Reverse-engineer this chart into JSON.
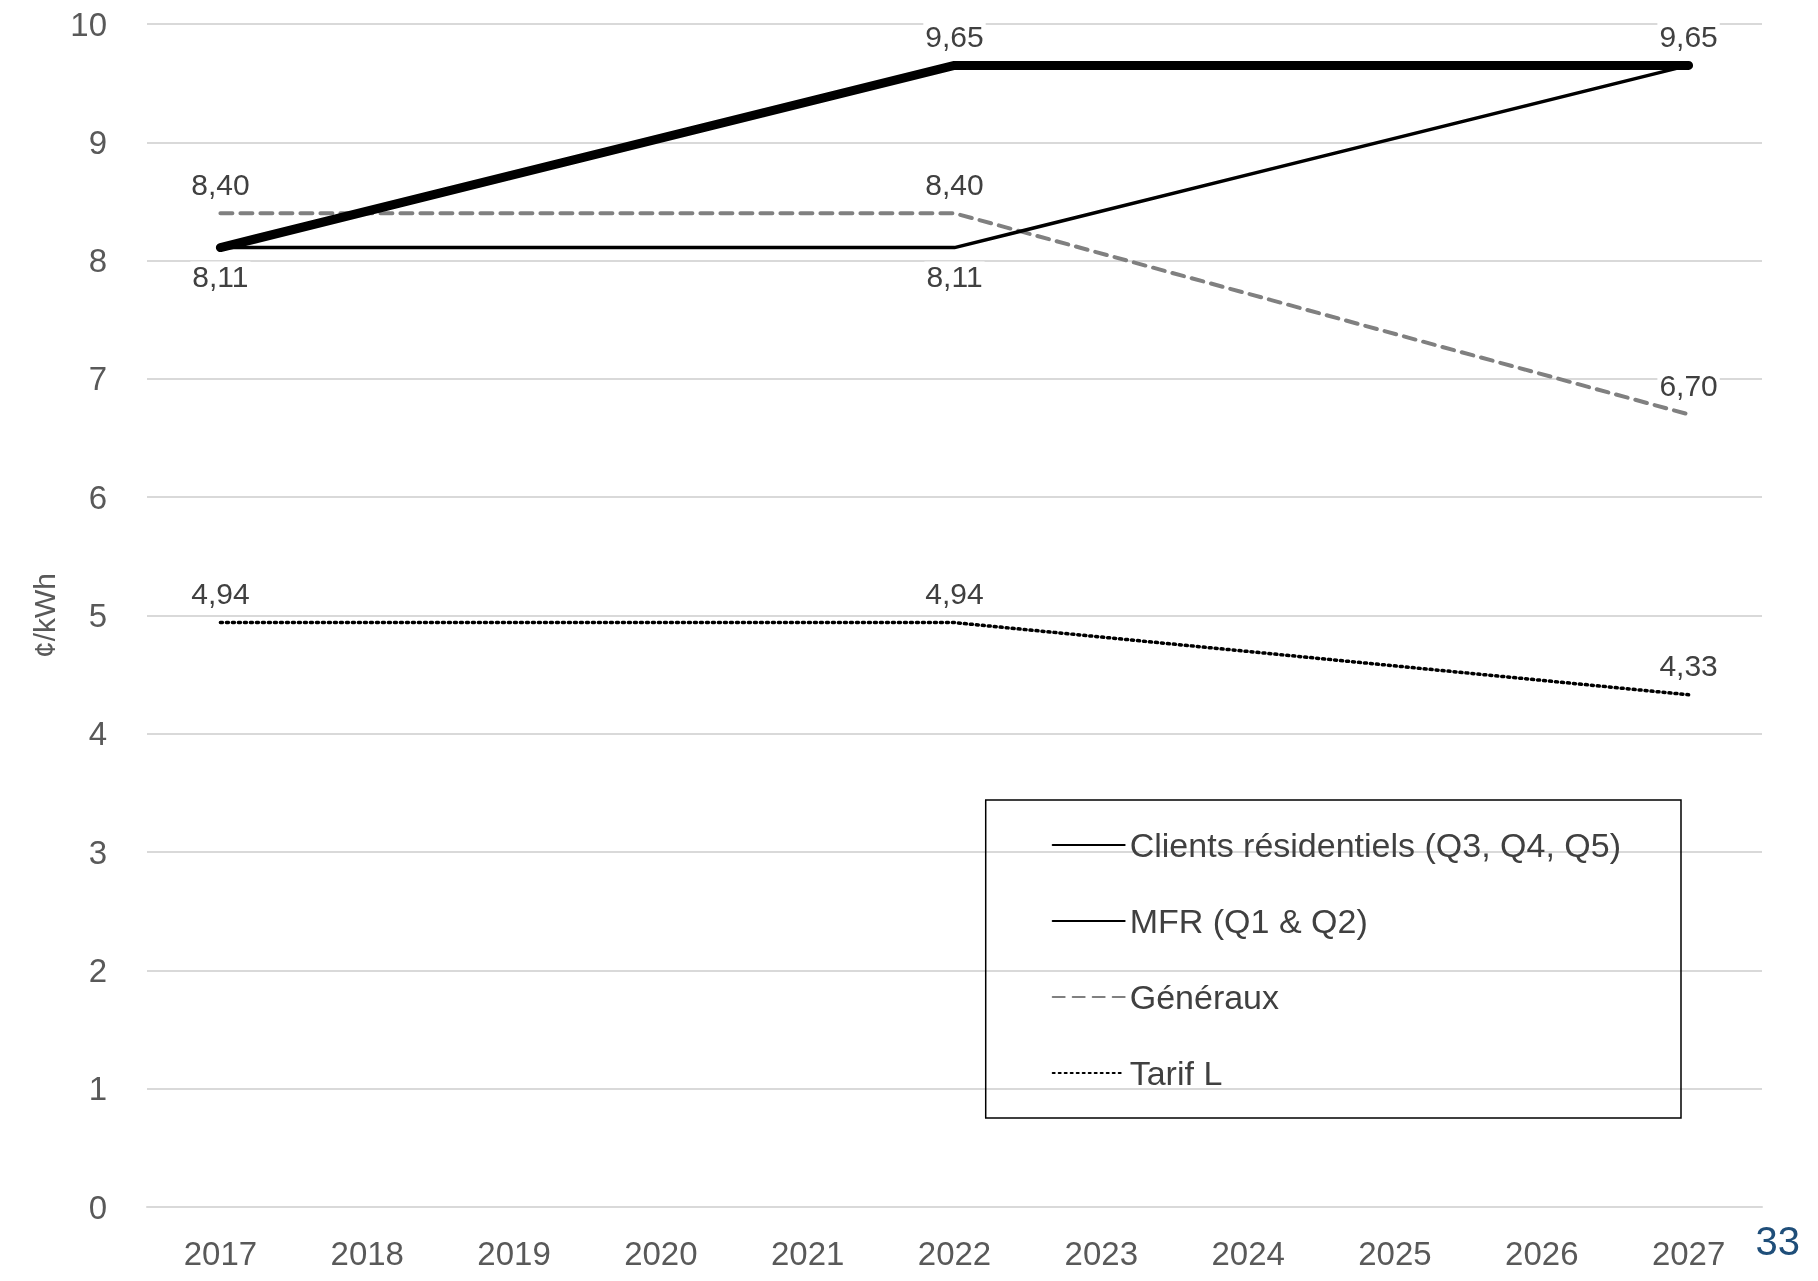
{
  "chart_data": {
    "type": "line",
    "ylabel": "¢/kWh",
    "xlim": [
      2016.5,
      2027.5
    ],
    "xticks": [
      2017,
      2018,
      2019,
      2020,
      2021,
      2022,
      2023,
      2024,
      2025,
      2026,
      2027
    ],
    "ylim": [
      0,
      10
    ],
    "yticks": [
      0,
      1,
      2,
      3,
      4,
      5,
      6,
      7,
      8,
      9,
      10
    ],
    "grid": "y",
    "legend": "bottom right",
    "marker": "none",
    "annotations": [
      "33"
    ],
    "series": [
      {
        "name": "Clients résidentiels (Q3, Q4, Q5)",
        "color": "#000000",
        "x": [
          2017,
          2022,
          2027
        ],
        "values": [
          8.11,
          9.65,
          9.65
        ],
        "value_labels": [
          null,
          "9,65",
          "9,65"
        ],
        "line_style": "solid"
      },
      {
        "name": "MFR (Q1 & Q2)",
        "color": "#000000",
        "x": [
          2017,
          2022,
          2027
        ],
        "values": [
          8.11,
          8.11,
          9.65
        ],
        "value_labels": [
          "8,11",
          "8,11",
          null
        ],
        "line_style": "solid"
      },
      {
        "name": "Généraux",
        "color": "#808080",
        "x": [
          2017,
          2022,
          2027
        ],
        "values": [
          8.4,
          8.4,
          6.7
        ],
        "value_labels": [
          "8,40",
          "8,40",
          "6,70"
        ],
        "line_style": "dashed"
      },
      {
        "name": "Tarif L",
        "color": "#000000",
        "x": [
          2017,
          2022,
          2027
        ],
        "values": [
          4.94,
          4.94,
          4.33
        ],
        "value_labels": [
          "4,94",
          "4,94",
          "4,33"
        ],
        "line_style": "dotted"
      }
    ]
  }
}
